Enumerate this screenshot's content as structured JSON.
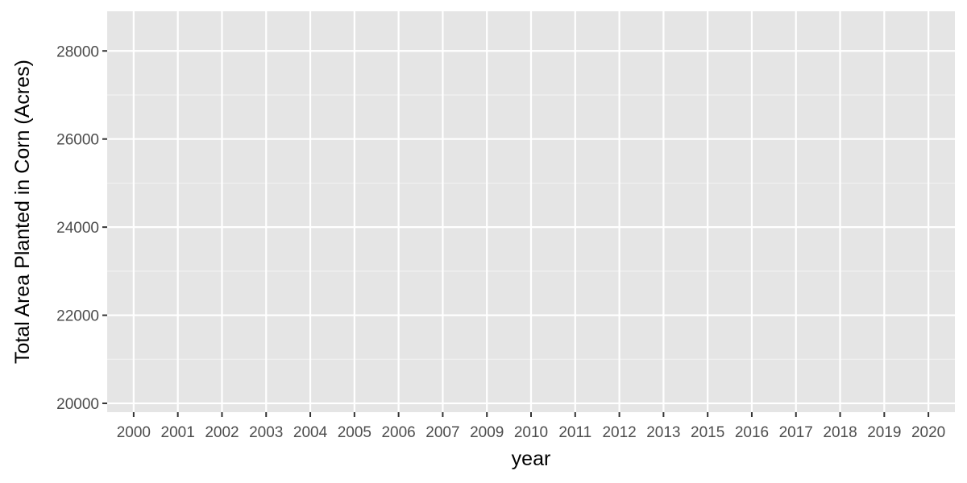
{
  "chart_data": {
    "type": "line",
    "title": "",
    "xlabel": "year",
    "ylabel": "Total Area Planted in Corn (Acres)",
    "x_categories": [
      "2000",
      "2001",
      "2002",
      "2003",
      "2004",
      "2005",
      "2006",
      "2007",
      "2009",
      "2010",
      "2011",
      "2012",
      "2013",
      "2015",
      "2016",
      "2017",
      "2018",
      "2019",
      "2020"
    ],
    "y_ticks": [
      20000,
      22000,
      24000,
      26000,
      28000
    ],
    "y_tick_labels": [
      "20000",
      "22000",
      "24000",
      "26000",
      "28000"
    ],
    "ylim": [
      19800,
      28900
    ],
    "grid": true,
    "legend": "none",
    "series": [],
    "colors": {
      "panel_background": "#e5e5e5",
      "grid_major": "#ffffff",
      "grid_minor": "#f2f2f2",
      "tick_mark": "#333333",
      "tick_text": "#4d4d4d",
      "axis_title": "#000000"
    }
  }
}
